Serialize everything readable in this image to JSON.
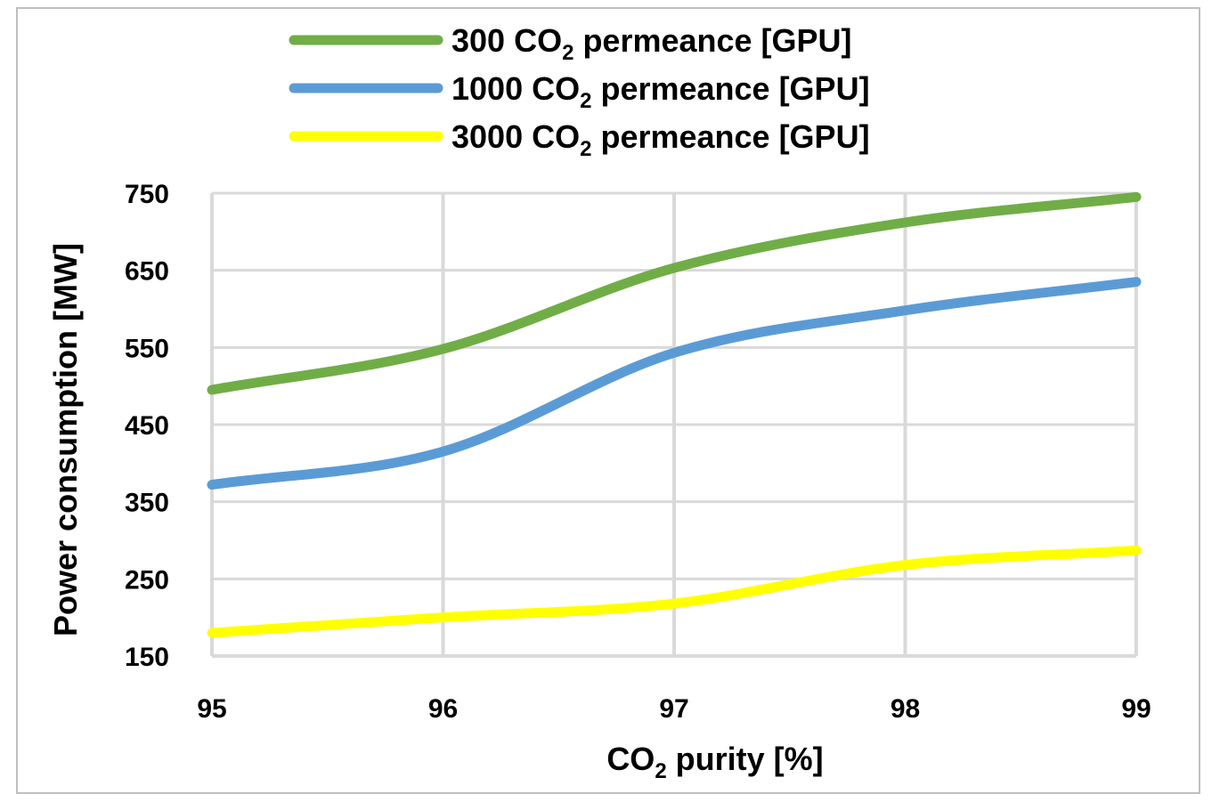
{
  "chart_data": {
    "type": "line",
    "title": "",
    "xlabel": {
      "prefix": "CO",
      "sub": "2",
      "suffix": " purity [%]"
    },
    "ylabel": "Power consumption [MW]",
    "x": [
      95,
      96,
      97,
      98,
      99
    ],
    "x_ticks": [
      "95",
      "96",
      "97",
      "98",
      "99"
    ],
    "xlim": [
      95,
      99
    ],
    "y_ticks": [
      "150",
      "250",
      "350",
      "450",
      "550",
      "650",
      "750"
    ],
    "ylim": [
      150,
      750
    ],
    "grid": true,
    "legend_position": "top",
    "series": [
      {
        "name": "300 CO2 permeance [GPU]",
        "label_prefix": "300 CO",
        "label_sub": "2",
        "label_suffix": " permeance [GPU]",
        "color": "#70ad47",
        "values": [
          495,
          548,
          653,
          712,
          745
        ]
      },
      {
        "name": "1000 CO2 permeance [GPU]",
        "label_prefix": "1000 CO",
        "label_sub": "2",
        "label_suffix": " permeance [GPU]",
        "color": "#5b9bd5",
        "values": [
          372,
          415,
          543,
          598,
          635
        ]
      },
      {
        "name": "3000 CO2 permeance [GPU]",
        "label_prefix": "3000 CO",
        "label_sub": "2",
        "label_suffix": " permeance [GPU]",
        "color": "#ffff00",
        "values": [
          180,
          200,
          218,
          268,
          287
        ]
      }
    ]
  }
}
